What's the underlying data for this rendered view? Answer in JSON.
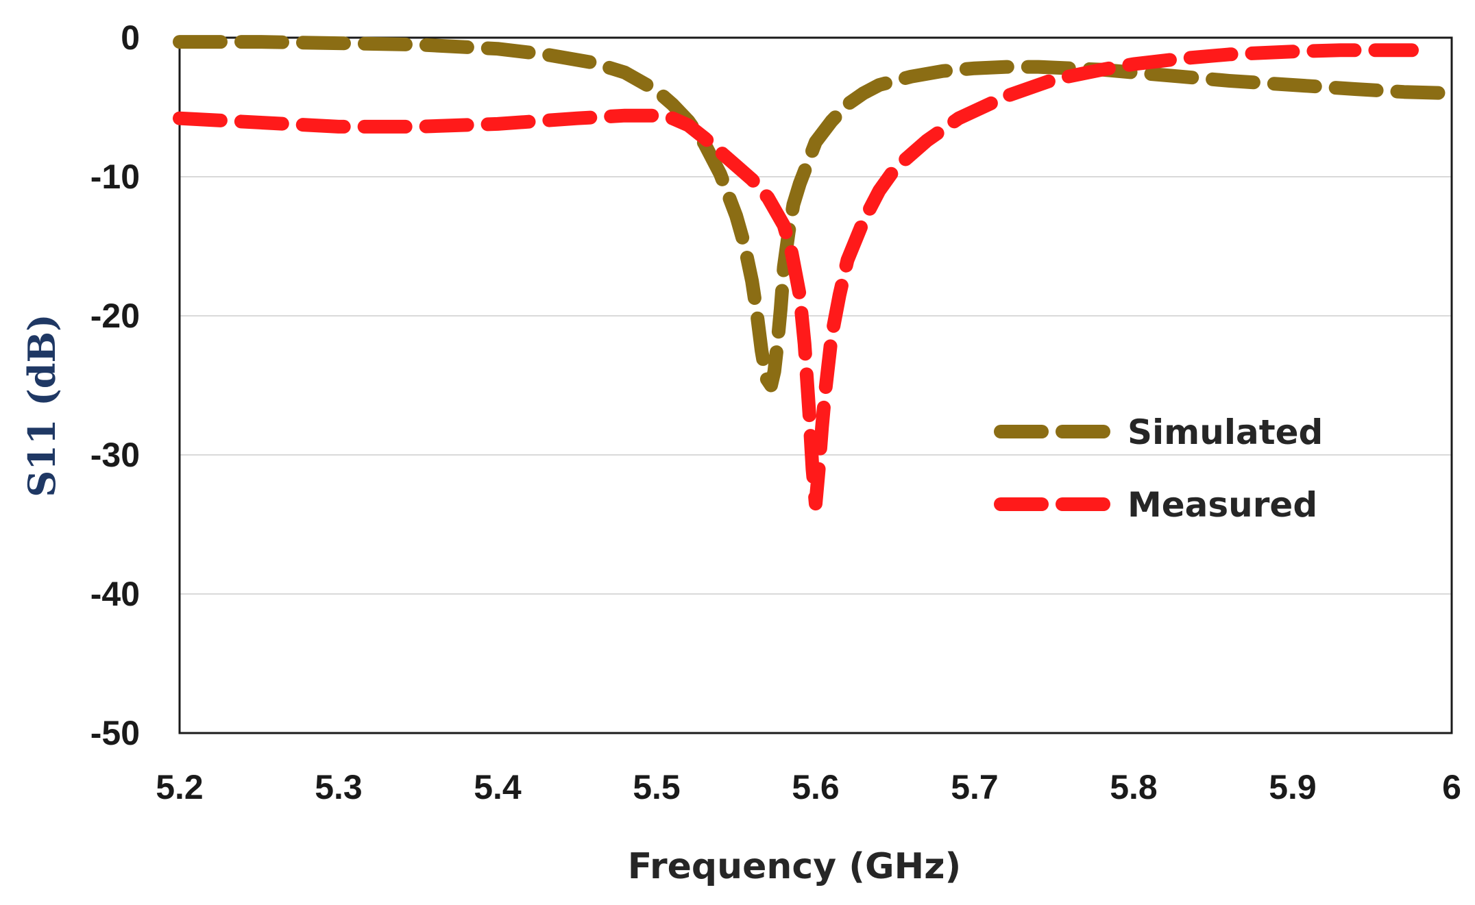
{
  "chart_data": {
    "type": "line",
    "title": "",
    "xlabel": "Frequency (GHz)",
    "ylabel": "S11 (dB)",
    "xlim": [
      5.2,
      6.0
    ],
    "ylim": [
      -50,
      0
    ],
    "x_ticks": [
      "5.2",
      "5.3",
      "5.4",
      "5.5",
      "5.6",
      "5.7",
      "5.8",
      "5.9",
      "6"
    ],
    "y_ticks": [
      "0",
      "-10",
      "-20",
      "-30",
      "-40",
      "-50"
    ],
    "grid": "horizontal",
    "legend_position": "right-middle",
    "ylabel_color": "#1f3864",
    "series": [
      {
        "name": "Simulated",
        "color": "#8b6d14",
        "x": [
          5.2,
          5.25,
          5.3,
          5.35,
          5.4,
          5.43,
          5.46,
          5.48,
          5.5,
          5.51,
          5.52,
          5.53,
          5.54,
          5.55,
          5.555,
          5.56,
          5.563,
          5.566,
          5.569,
          5.572,
          5.574,
          5.576,
          5.578,
          5.58,
          5.583,
          5.586,
          5.59,
          5.595,
          5.6,
          5.61,
          5.62,
          5.63,
          5.64,
          5.66,
          5.68,
          5.7,
          5.72,
          5.74,
          5.76,
          5.78,
          5.8,
          5.83,
          5.86,
          5.9,
          5.94,
          5.97,
          6.0
        ],
        "y": [
          -0.3,
          -0.3,
          -0.4,
          -0.5,
          -0.8,
          -1.2,
          -1.8,
          -2.5,
          -3.8,
          -4.8,
          -6.0,
          -7.6,
          -9.8,
          -12.8,
          -14.8,
          -17.5,
          -19.8,
          -22.5,
          -24.5,
          -25.0,
          -24.0,
          -22.0,
          -19.5,
          -16.5,
          -14.0,
          -12.0,
          -10.5,
          -9.0,
          -7.5,
          -6.0,
          -4.8,
          -4.0,
          -3.4,
          -2.8,
          -2.4,
          -2.2,
          -2.1,
          -2.1,
          -2.2,
          -2.3,
          -2.5,
          -2.8,
          -3.1,
          -3.4,
          -3.7,
          -3.9,
          -4.0
        ]
      },
      {
        "name": "Measured",
        "color": "#ff1a1a",
        "x": [
          5.2,
          5.25,
          5.3,
          5.35,
          5.4,
          5.45,
          5.48,
          5.5,
          5.51,
          5.52,
          5.53,
          5.54,
          5.55,
          5.56,
          5.57,
          5.58,
          5.585,
          5.59,
          5.593,
          5.596,
          5.598,
          5.6,
          5.602,
          5.604,
          5.606,
          5.61,
          5.615,
          5.62,
          5.63,
          5.64,
          5.65,
          5.67,
          5.69,
          5.72,
          5.75,
          5.78,
          5.8,
          5.83,
          5.86,
          5.9,
          5.93,
          5.96,
          5.975
        ],
        "y": [
          -5.8,
          -6.1,
          -6.4,
          -6.4,
          -6.2,
          -5.8,
          -5.6,
          -5.6,
          -5.8,
          -6.3,
          -7.2,
          -8.2,
          -9.2,
          -10.2,
          -11.5,
          -13.5,
          -15.5,
          -18.5,
          -22.0,
          -27.0,
          -31.0,
          -33.5,
          -31.0,
          -28.0,
          -25.5,
          -21.5,
          -18.5,
          -16.0,
          -13.2,
          -11.0,
          -9.4,
          -7.4,
          -5.8,
          -4.2,
          -3.0,
          -2.3,
          -1.9,
          -1.5,
          -1.2,
          -1.0,
          -0.9,
          -0.9,
          -0.9
        ]
      }
    ]
  }
}
